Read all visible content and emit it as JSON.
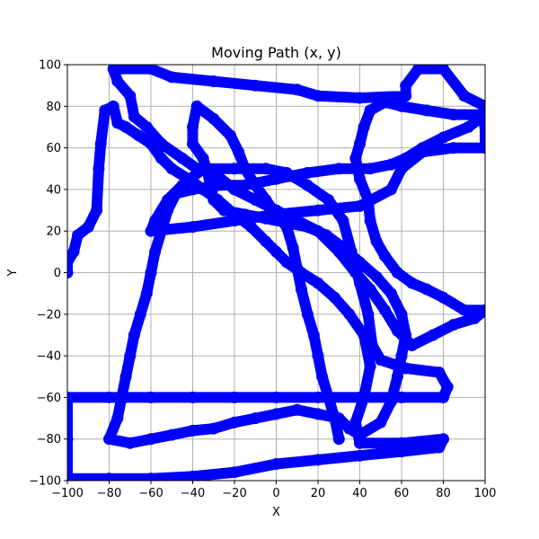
{
  "chart_data": {
    "type": "scatter",
    "title": "Moving Path (x, y)",
    "xlabel": "X",
    "ylabel": "Y",
    "xlim": [
      -100,
      100
    ],
    "ylim": [
      -100,
      100
    ],
    "xticks": [
      -100,
      -80,
      -60,
      -40,
      -20,
      0,
      20,
      40,
      60,
      80,
      100
    ],
    "yticks": [
      -100,
      -80,
      -60,
      -40,
      -20,
      0,
      20,
      40,
      60,
      80,
      100
    ],
    "grid": true,
    "series": [
      {
        "color": "#0000ff",
        "marker": "circle",
        "connected": true,
        "points": [
          [
            -100,
            0
          ],
          [
            -100,
            5
          ],
          [
            -97,
            10
          ],
          [
            -95,
            18
          ],
          [
            -90,
            22
          ],
          [
            -86,
            30
          ],
          [
            -85,
            50
          ],
          [
            -84,
            62
          ],
          [
            -82,
            78
          ],
          [
            -78,
            80
          ],
          [
            -76,
            72
          ],
          [
            -72,
            70
          ],
          [
            -66,
            66
          ],
          [
            -60,
            62
          ],
          [
            -55,
            55
          ],
          [
            -50,
            50
          ],
          [
            -42,
            45
          ],
          [
            -35,
            40
          ],
          [
            -28,
            35
          ],
          [
            -20,
            28
          ],
          [
            -12,
            22
          ],
          [
            -5,
            15
          ],
          [
            0,
            10
          ],
          [
            5,
            5
          ],
          [
            12,
            0
          ],
          [
            20,
            -5
          ],
          [
            28,
            -12
          ],
          [
            35,
            -20
          ],
          [
            42,
            -30
          ],
          [
            45,
            -45
          ],
          [
            42,
            -60
          ],
          [
            38,
            -72
          ],
          [
            40,
            -82
          ],
          [
            60,
            -82
          ],
          [
            80,
            -80
          ],
          [
            78,
            -84
          ],
          [
            60,
            -86
          ],
          [
            40,
            -88
          ],
          [
            20,
            -90
          ],
          [
            0,
            -92
          ],
          [
            -20,
            -96
          ],
          [
            -40,
            -98
          ],
          [
            -60,
            -99
          ],
          [
            -80,
            -99
          ],
          [
            -100,
            -99
          ],
          [
            -100,
            -80
          ],
          [
            -100,
            -60
          ],
          [
            -80,
            -60
          ],
          [
            -60,
            -60
          ],
          [
            -40,
            -60
          ],
          [
            -20,
            -60
          ],
          [
            0,
            -60
          ],
          [
            20,
            -60
          ],
          [
            40,
            -60
          ],
          [
            60,
            -60
          ],
          [
            80,
            -60
          ],
          [
            82,
            -55
          ],
          [
            78,
            -48
          ],
          [
            62,
            -46
          ],
          [
            50,
            -42
          ],
          [
            46,
            -35
          ],
          [
            44,
            -20
          ],
          [
            40,
            -5
          ],
          [
            36,
            10
          ],
          [
            32,
            25
          ],
          [
            25,
            35
          ],
          [
            15,
            42
          ],
          [
            5,
            48
          ],
          [
            -5,
            50
          ],
          [
            -20,
            50
          ],
          [
            -35,
            50
          ],
          [
            -45,
            42
          ],
          [
            -52,
            35
          ],
          [
            -58,
            25
          ],
          [
            -60,
            20
          ],
          [
            -40,
            22
          ],
          [
            -20,
            25
          ],
          [
            0,
            28
          ],
          [
            20,
            30
          ],
          [
            40,
            32
          ],
          [
            55,
            40
          ],
          [
            60,
            50
          ],
          [
            70,
            58
          ],
          [
            85,
            60
          ],
          [
            100,
            60
          ],
          [
            100,
            70
          ],
          [
            100,
            80
          ],
          [
            90,
            85
          ],
          [
            80,
            98
          ],
          [
            68,
            98
          ],
          [
            62,
            90
          ],
          [
            62,
            85
          ],
          [
            40,
            84
          ],
          [
            20,
            85
          ],
          [
            10,
            88
          ],
          [
            -10,
            90
          ],
          [
            -30,
            92
          ],
          [
            -50,
            94
          ],
          [
            -60,
            98
          ],
          [
            -78,
            98
          ],
          [
            -76,
            92
          ],
          [
            -70,
            85
          ],
          [
            -68,
            75
          ],
          [
            -62,
            70
          ],
          [
            -55,
            62
          ],
          [
            -45,
            55
          ],
          [
            -38,
            50
          ],
          [
            -30,
            48
          ],
          [
            -20,
            40
          ],
          [
            -10,
            35
          ],
          [
            0,
            30
          ],
          [
            10,
            25
          ],
          [
            20,
            20
          ],
          [
            30,
            10
          ],
          [
            38,
            0
          ],
          [
            45,
            -8
          ],
          [
            52,
            -18
          ],
          [
            58,
            -28
          ],
          [
            65,
            -35
          ],
          [
            75,
            -30
          ],
          [
            85,
            -25
          ],
          [
            95,
            -22
          ],
          [
            100,
            -18
          ],
          [
            90,
            -18
          ],
          [
            80,
            -12
          ],
          [
            72,
            -8
          ],
          [
            65,
            -5
          ],
          [
            58,
            0
          ],
          [
            52,
            8
          ],
          [
            48,
            15
          ],
          [
            45,
            25
          ],
          [
            44,
            35
          ],
          [
            40,
            45
          ],
          [
            38,
            55
          ],
          [
            40,
            62
          ],
          [
            42,
            70
          ],
          [
            45,
            78
          ],
          [
            52,
            82
          ],
          [
            60,
            80
          ],
          [
            72,
            78
          ],
          [
            85,
            76
          ],
          [
            100,
            76
          ],
          [
            92,
            70
          ],
          [
            80,
            65
          ],
          [
            70,
            60
          ],
          [
            62,
            55
          ],
          [
            55,
            52
          ],
          [
            45,
            50
          ],
          [
            30,
            50
          ],
          [
            15,
            48
          ],
          [
            0,
            45
          ],
          [
            -15,
            42
          ],
          [
            -28,
            42
          ],
          [
            -40,
            40
          ],
          [
            -48,
            38
          ],
          [
            -52,
            30
          ],
          [
            -55,
            20
          ],
          [
            -58,
            10
          ],
          [
            -60,
            0
          ],
          [
            -62,
            -10
          ],
          [
            -65,
            -20
          ],
          [
            -68,
            -30
          ],
          [
            -70,
            -40
          ],
          [
            -72,
            -50
          ],
          [
            -74,
            -60
          ],
          [
            -76,
            -70
          ],
          [
            -80,
            -80
          ],
          [
            -70,
            -82
          ],
          [
            -60,
            -80
          ],
          [
            -50,
            -78
          ],
          [
            -40,
            -76
          ],
          [
            -30,
            -75
          ],
          [
            -20,
            -72
          ],
          [
            -10,
            -70
          ],
          [
            0,
            -68
          ],
          [
            10,
            -66
          ],
          [
            20,
            -68
          ],
          [
            30,
            -70
          ],
          [
            35,
            -75
          ],
          [
            40,
            -78
          ],
          [
            50,
            -72
          ],
          [
            55,
            -62
          ],
          [
            58,
            -50
          ],
          [
            60,
            -40
          ],
          [
            62,
            -30
          ],
          [
            60,
            -20
          ],
          [
            55,
            -10
          ],
          [
            48,
            -2
          ],
          [
            40,
            5
          ],
          [
            32,
            12
          ],
          [
            24,
            18
          ],
          [
            15,
            22
          ],
          [
            5,
            24
          ],
          [
            -5,
            26
          ],
          [
            -15,
            28
          ],
          [
            -25,
            30
          ],
          [
            -30,
            35
          ],
          [
            -32,
            45
          ],
          [
            -35,
            55
          ],
          [
            -40,
            62
          ],
          [
            -40,
            70
          ],
          [
            -38,
            80
          ],
          [
            -30,
            74
          ],
          [
            -22,
            66
          ],
          [
            -18,
            58
          ],
          [
            -15,
            50
          ],
          [
            -10,
            42
          ],
          [
            -5,
            35
          ],
          [
            0,
            28
          ],
          [
            5,
            22
          ],
          [
            8,
            12
          ],
          [
            10,
            2
          ],
          [
            12,
            -8
          ],
          [
            15,
            -20
          ],
          [
            18,
            -30
          ],
          [
            20,
            -40
          ],
          [
            22,
            -50
          ],
          [
            25,
            -60
          ],
          [
            28,
            -70
          ],
          [
            30,
            -80
          ]
        ]
      }
    ]
  }
}
